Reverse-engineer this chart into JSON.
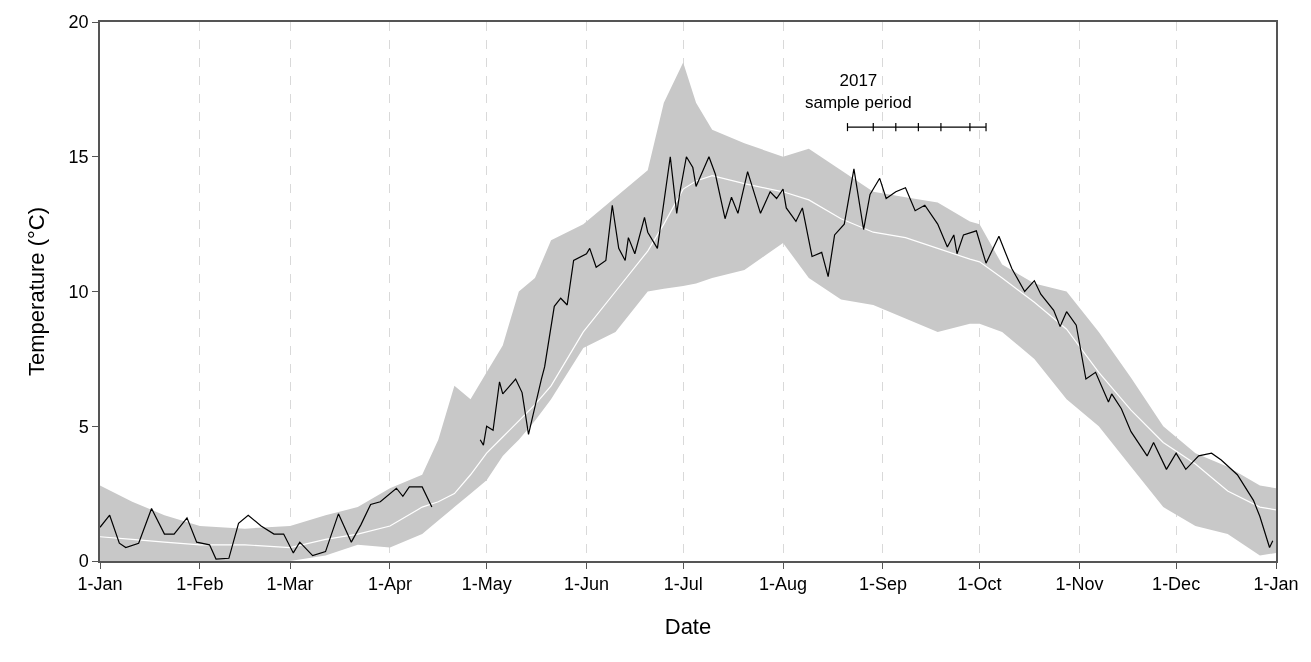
{
  "chart_data": {
    "type": "line",
    "xlabel": "Date",
    "ylabel": "Temperature (°C)",
    "xlim": [
      "2017-01-01",
      "2018-01-01"
    ],
    "ylim": [
      0,
      20
    ],
    "xticks": [
      {
        "value": "2017-01-01",
        "label": "1-Jan"
      },
      {
        "value": "2017-02-01",
        "label": "1-Feb"
      },
      {
        "value": "2017-03-01",
        "label": "1-Mar"
      },
      {
        "value": "2017-04-01",
        "label": "1-Apr"
      },
      {
        "value": "2017-05-01",
        "label": "1-May"
      },
      {
        "value": "2017-06-01",
        "label": "1-Jun"
      },
      {
        "value": "2017-07-01",
        "label": "1-Jul"
      },
      {
        "value": "2017-08-01",
        "label": "1-Aug"
      },
      {
        "value": "2017-09-01",
        "label": "1-Sep"
      },
      {
        "value": "2017-10-01",
        "label": "1-Oct"
      },
      {
        "value": "2017-11-01",
        "label": "1-Nov"
      },
      {
        "value": "2017-12-01",
        "label": "1-Dec"
      },
      {
        "value": "2018-01-01",
        "label": "1-Jan"
      }
    ],
    "yticks": [
      0,
      5,
      10,
      15,
      20
    ],
    "grid": "x",
    "marker": "none",
    "line_style": "solid",
    "annotations": [
      "2017\nsample period"
    ],
    "series": [
      {
        "color": "#ffffff",
        "x": [
          "2017-01-01",
          "2017-01-11",
          "2017-01-21",
          "2017-02-01",
          "2017-02-15",
          "2017-03-01",
          "2017-03-12",
          "2017-03-22",
          "2017-04-01",
          "2017-04-11",
          "2017-04-16",
          "2017-04-21",
          "2017-04-26",
          "2017-05-01",
          "2017-05-06",
          "2017-05-11",
          "2017-05-16",
          "2017-05-21",
          "2017-05-31",
          "2017-06-10",
          "2017-06-20",
          "2017-06-25",
          "2017-07-01",
          "2017-07-05",
          "2017-07-10",
          "2017-07-20",
          "2017-08-01",
          "2017-08-09",
          "2017-08-19",
          "2017-08-29",
          "2017-09-08",
          "2017-09-18",
          "2017-09-28",
          "2017-10-01",
          "2017-10-08",
          "2017-10-18",
          "2017-10-28",
          "2017-11-07",
          "2017-11-17",
          "2017-11-27",
          "2017-12-07",
          "2017-12-17",
          "2017-12-27",
          "2018-01-01"
        ],
        "values": [
          0.9,
          0.8,
          0.7,
          0.6,
          0.6,
          0.5,
          0.8,
          1.0,
          1.3,
          2.0,
          2.2,
          2.5,
          3.2,
          4.0,
          4.6,
          5.2,
          5.8,
          6.5,
          8.5,
          10.0,
          11.5,
          12.5,
          13.8,
          14.1,
          14.3,
          14.0,
          13.7,
          13.4,
          12.7,
          12.2,
          12.0,
          11.6,
          11.2,
          11.1,
          10.5,
          9.6,
          8.6,
          7.0,
          5.6,
          4.4,
          3.6,
          2.6,
          2.0,
          1.9
        ],
        "lower": [
          0.0,
          0.0,
          0.0,
          0.0,
          0.0,
          0.0,
          0.2,
          0.6,
          0.5,
          1.0,
          1.5,
          2.0,
          2.5,
          3.0,
          3.9,
          4.5,
          5.2,
          6.0,
          7.9,
          8.5,
          10.0,
          10.1,
          10.2,
          10.3,
          10.5,
          10.8,
          11.8,
          10.5,
          9.7,
          9.5,
          9.0,
          8.5,
          8.8,
          8.8,
          8.5,
          7.5,
          6.0,
          5.0,
          3.5,
          2.0,
          1.3,
          1.0,
          0.2,
          0.3
        ],
        "upper": [
          2.8,
          2.2,
          1.7,
          1.3,
          1.2,
          1.3,
          1.7,
          2.0,
          2.7,
          3.2,
          4.5,
          6.5,
          6.0,
          7.0,
          8.0,
          10.0,
          10.5,
          11.9,
          12.5,
          13.5,
          14.5,
          17.0,
          18.5,
          17.0,
          16.0,
          15.5,
          15.0,
          15.3,
          14.5,
          13.7,
          13.5,
          13.3,
          12.6,
          12.5,
          11.0,
          10.3,
          10.0,
          8.5,
          6.8,
          5.0,
          4.0,
          3.5,
          2.8,
          2.7
        ]
      },
      {
        "color": "#000000",
        "x": [
          "2017-01-01",
          "2017-01-04",
          "2017-01-07",
          "2017-01-09",
          "2017-01-13",
          "2017-01-17",
          "2017-01-21",
          "2017-01-24",
          "2017-01-28",
          "2017-01-31",
          "2017-02-04",
          "2017-02-06",
          "2017-02-10",
          "2017-02-13",
          "2017-02-16",
          "2017-02-20",
          "2017-02-24",
          "2017-02-27",
          "2017-03-02",
          "2017-03-04",
          "2017-03-08",
          "2017-03-12",
          "2017-03-16",
          "2017-03-20",
          "2017-03-23",
          "2017-03-26",
          "2017-03-29",
          "2017-04-03",
          "2017-04-05",
          "2017-04-07",
          "2017-04-11",
          "2017-04-14",
          "2017-04-21",
          "2017-04-29",
          "2017-04-30",
          "2017-05-01",
          "2017-05-03",
          "2017-05-05",
          "2017-05-06",
          "2017-05-10",
          "2017-05-12",
          "2017-05-14",
          "2017-05-18",
          "2017-05-19",
          "2017-05-22",
          "2017-05-24",
          "2017-05-26",
          "2017-05-28",
          "2017-06-01",
          "2017-06-02",
          "2017-06-04",
          "2017-06-07",
          "2017-06-09",
          "2017-06-11",
          "2017-06-13",
          "2017-06-14",
          "2017-06-16",
          "2017-06-19",
          "2017-06-20",
          "2017-06-23",
          "2017-06-27",
          "2017-06-29",
          "2017-06-30",
          "2017-07-02",
          "2017-07-04",
          "2017-07-05",
          "2017-07-09",
          "2017-07-11",
          "2017-07-14",
          "2017-07-16",
          "2017-07-18",
          "2017-07-21",
          "2017-07-25",
          "2017-07-28",
          "2017-07-30",
          "2017-08-01",
          "2017-08-02",
          "2017-08-05",
          "2017-08-07",
          "2017-08-10",
          "2017-08-13",
          "2017-08-15",
          "2017-08-17",
          "2017-08-20",
          "2017-08-23",
          "2017-08-26",
          "2017-08-28",
          "2017-08-31",
          "2017-09-02",
          "2017-09-05",
          "2017-09-08",
          "2017-09-11",
          "2017-09-14",
          "2017-09-18",
          "2017-09-21",
          "2017-09-23",
          "2017-09-24",
          "2017-09-26",
          "2017-09-30",
          "2017-10-03",
          "2017-10-07",
          "2017-10-09",
          "2017-10-11",
          "2017-10-15",
          "2017-10-18",
          "2017-10-20",
          "2017-10-24",
          "2017-10-26",
          "2017-10-28",
          "2017-10-31",
          "2017-11-03",
          "2017-11-06",
          "2017-11-10",
          "2017-11-11",
          "2017-11-14",
          "2017-11-17",
          "2017-11-22",
          "2017-11-24",
          "2017-11-28",
          "2017-12-01",
          "2017-12-04",
          "2017-12-08",
          "2017-12-12",
          "2017-12-15",
          "2017-12-20",
          "2017-12-25",
          "2017-12-27",
          "2017-12-30",
          "2017-12-31"
        ],
        "values": [
          1.25,
          1.7,
          0.66,
          0.5,
          0.66,
          1.95,
          1.0,
          1.0,
          1.6,
          0.7,
          0.6,
          0.07,
          0.1,
          1.4,
          1.7,
          1.3,
          1.0,
          1.0,
          0.3,
          0.7,
          0.2,
          0.35,
          1.75,
          0.7,
          1.35,
          2.1,
          2.2,
          2.7,
          2.4,
          2.75,
          2.75,
          2.0,
          null,
          4.5,
          4.3,
          5.0,
          4.85,
          6.65,
          6.2,
          6.75,
          6.25,
          4.7,
          6.75,
          7.2,
          9.45,
          9.75,
          9.5,
          11.15,
          11.4,
          11.6,
          10.9,
          11.15,
          13.2,
          11.6,
          11.15,
          12.0,
          11.4,
          12.75,
          12.2,
          11.6,
          15.0,
          12.9,
          13.7,
          15.0,
          14.6,
          13.9,
          15.0,
          14.35,
          12.7,
          13.5,
          12.9,
          14.45,
          12.9,
          13.7,
          13.45,
          13.8,
          13.1,
          12.6,
          13.1,
          11.3,
          11.45,
          10.55,
          12.1,
          12.5,
          14.55,
          12.3,
          13.6,
          14.2,
          13.45,
          13.7,
          13.85,
          13.0,
          13.2,
          12.5,
          11.65,
          12.1,
          11.4,
          12.1,
          12.25,
          11.05,
          12.05,
          11.45,
          10.85,
          10.0,
          10.4,
          9.9,
          9.3,
          8.7,
          9.25,
          8.75,
          6.75,
          7.0,
          5.9,
          6.2,
          5.65,
          4.8,
          3.9,
          4.4,
          3.4,
          4.0,
          3.4,
          3.9,
          4.0,
          3.75,
          3.2,
          2.25,
          1.65,
          0.5,
          0.75
        ]
      },
      {
        "color": "#000000",
        "x": [
          "2017-08-21",
          "2017-08-29",
          "2017-09-05",
          "2017-09-12",
          "2017-09-19",
          "2017-09-28",
          "2017-10-03"
        ],
        "values": [
          16.1,
          16.1,
          16.1,
          16.1,
          16.1,
          16.1,
          16.1
        ],
        "errors": [
          0.15,
          0.15,
          0.15,
          0.15,
          0.15,
          0.15,
          0.15
        ]
      }
    ]
  }
}
